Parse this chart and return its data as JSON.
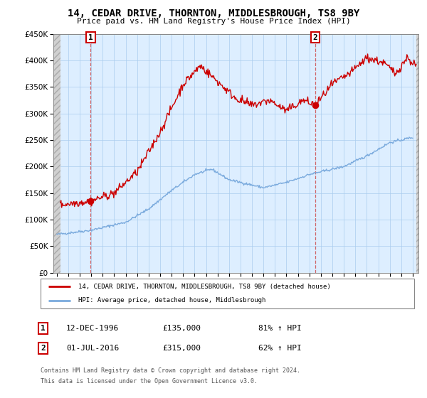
{
  "title": "14, CEDAR DRIVE, THORNTON, MIDDLESBROUGH, TS8 9BY",
  "subtitle": "Price paid vs. HM Land Registry's House Price Index (HPI)",
  "xlim_start": 1993.7,
  "xlim_end": 2025.5,
  "ylim_min": 0,
  "ylim_max": 450000,
  "yticks": [
    0,
    50000,
    100000,
    150000,
    200000,
    250000,
    300000,
    350000,
    400000,
    450000
  ],
  "ytick_labels": [
    "£0",
    "£50K",
    "£100K",
    "£150K",
    "£200K",
    "£250K",
    "£300K",
    "£350K",
    "£400K",
    "£450K"
  ],
  "xticks": [
    1994,
    1995,
    1996,
    1997,
    1998,
    1999,
    2000,
    2001,
    2002,
    2003,
    2004,
    2005,
    2006,
    2007,
    2008,
    2009,
    2010,
    2011,
    2012,
    2013,
    2014,
    2015,
    2016,
    2017,
    2018,
    2019,
    2020,
    2021,
    2022,
    2023,
    2024,
    2025
  ],
  "purchase1_year": 1996.95,
  "purchase1_price": 135000,
  "purchase1_label": "12-DEC-1996",
  "purchase1_amount": "£135,000",
  "purchase1_hpi": "81% ↑ HPI",
  "purchase2_year": 2016.5,
  "purchase2_price": 315000,
  "purchase2_label": "01-JUL-2016",
  "purchase2_amount": "£315,000",
  "purchase2_hpi": "62% ↑ HPI",
  "red_line_color": "#cc0000",
  "blue_line_color": "#7aaadd",
  "chart_bg_color": "#ddeeff",
  "hatch_color": "#c8c8c8",
  "grid_color": "#aaccee",
  "annotation_box_color": "#cc0000",
  "legend_line1": "14, CEDAR DRIVE, THORNTON, MIDDLESBROUGH, TS8 9BY (detached house)",
  "legend_line2": "HPI: Average price, detached house, Middlesbrough",
  "footer1": "Contains HM Land Registry data © Crown copyright and database right 2024.",
  "footer2": "This data is licensed under the Open Government Licence v3.0."
}
